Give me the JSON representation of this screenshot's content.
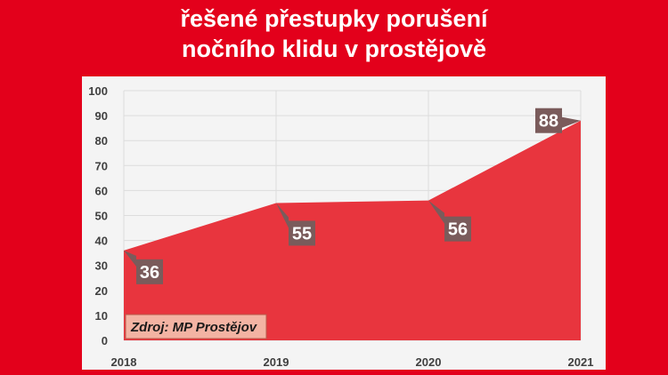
{
  "title_lines": [
    "řešené přestupky porušení",
    "nočního klidu v prostějově"
  ],
  "source": "Zdroj: MP Prostějov",
  "colors": {
    "background": "#e3001b",
    "area_fill": "#e8353e",
    "label_box": "#7a5b5b",
    "panel": "#f4f4f4"
  },
  "chart_data": {
    "type": "area",
    "categories": [
      "2018",
      "2019",
      "2020",
      "2021"
    ],
    "values": [
      36,
      55,
      56,
      88
    ],
    "data_labels": [
      "36",
      "55",
      "56",
      "88"
    ],
    "ylim": [
      0,
      100
    ],
    "yticks": [
      "0",
      "10",
      "20",
      "30",
      "40",
      "50",
      "60",
      "70",
      "80",
      "90",
      "100"
    ],
    "grid": true
  }
}
